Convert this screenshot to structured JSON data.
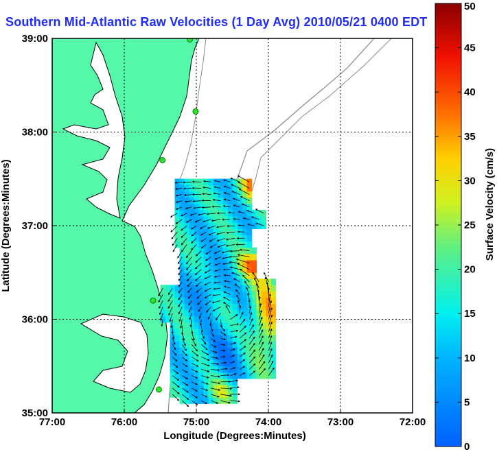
{
  "title": "Southern Mid-Atlantic Raw Velocities (1 Day Avg) 2010/05/21 0400 EDT",
  "colors": {
    "land": "#55f7a9",
    "coast": "#000000",
    "bathymetry": "#8a8a8a",
    "title": "#1f2cff",
    "station": "#28e628"
  },
  "chart_data": {
    "type": "heatmap",
    "title": "Southern Mid-Atlantic Raw Velocities (1 Day Avg) 2010/05/21 0400 EDT",
    "xlabel": "Longitude (Degrees:Minutes)",
    "ylabel": "Latitude (Degrees:Minutes)",
    "x_ticks": [
      "77:00",
      "76:00",
      "75:00",
      "74:00",
      "73:00",
      "72:00"
    ],
    "y_ticks": [
      "39:00",
      "38:00",
      "37:00",
      "36:00",
      "35:00"
    ],
    "xlim": [
      -77,
      -72
    ],
    "ylim": [
      35,
      39
    ],
    "grid": true,
    "colorbar": {
      "label": "Surface Velocity (cm/s)",
      "ticks": [
        "0",
        "5",
        "10",
        "15",
        "20",
        "25",
        "30",
        "35",
        "40",
        "45",
        "50"
      ],
      "range": [
        0,
        50
      ],
      "colormap": "jet"
    },
    "stations": [
      {
        "lon": -75.09,
        "lat": 38.99
      },
      {
        "lon": -75.01,
        "lat": 38.22
      },
      {
        "lon": -75.47,
        "lat": 37.7
      },
      {
        "lon": -75.6,
        "lat": 36.2
      },
      {
        "lon": -75.52,
        "lat": 35.25
      }
    ]
  }
}
